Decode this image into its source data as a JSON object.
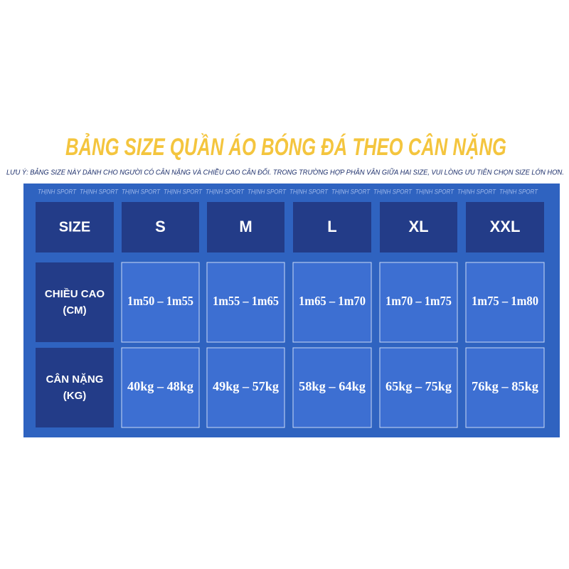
{
  "title": "BẢNG SIZE QUẦN ÁO BÓNG ĐÁ THEO CÂN NẶNG",
  "note": "LƯU Ý: BẢNG SIZE NÀY DÀNH CHO NGƯỜI CÓ CÂN NẶNG VÀ CHIỀU CAO CÂN ĐỐI. TRONG TRƯỜNG HỢP PHÂN VÂN GIỮA HAI SIZE, VUI LÒNG ƯU TIÊN CHỌN SIZE LỚN HƠN.",
  "watermark": [
    "THỊNH SPORT",
    "THỊNH SPORT",
    "THỊNH SPORT",
    "THỊNH SPORT",
    "THỊNH SPORT",
    "THỊNH SPORT",
    "THỊNH SPORT",
    "THỊNH SPORT",
    "THỊNH SPORT",
    "THỊNH SPORT",
    "THỊNH SPORT",
    "THỊNH SPORT"
  ],
  "table": {
    "header": [
      "SIZE",
      "S",
      "M",
      "L",
      "XL",
      "XXL"
    ],
    "rows": [
      {
        "label": [
          "CHIỀU CAO",
          "(CM)"
        ],
        "cells": [
          "1m50 – 1m55",
          "1m55 – 1m65",
          "1m65 – 1m70",
          "1m70 – 1m75",
          "1m75 – 1m80"
        ]
      },
      {
        "label": [
          "CÂN NẶNG",
          "(KG)"
        ],
        "cells": [
          "40kg – 48kg",
          "49kg – 57kg",
          "58kg – 64kg",
          "65kg – 75kg",
          "76kg – 85kg"
        ]
      }
    ]
  }
}
